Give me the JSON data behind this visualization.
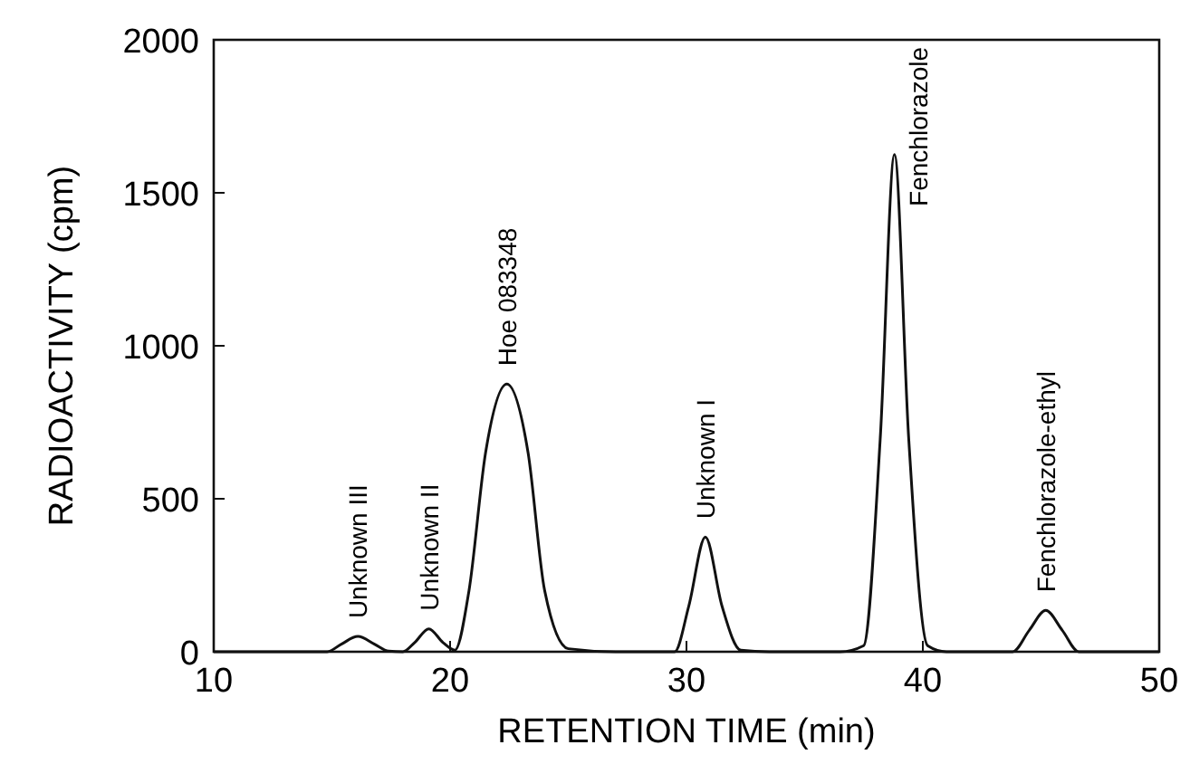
{
  "chart_data": {
    "type": "line",
    "xlabel": "RETENTION TIME (min)",
    "ylabel": "RADIOACTIVITY (cpm)",
    "xlim": [
      10,
      50
    ],
    "xticks": [
      10,
      20,
      30,
      40,
      50
    ],
    "ylim": [
      0,
      2000
    ],
    "yticks": [
      0,
      500,
      1000,
      1500,
      2000
    ],
    "grid": false,
    "marker": "none",
    "line_style": "solid",
    "series": [
      {
        "color": "#111111",
        "x": [
          10,
          14.8,
          15.4,
          16.1,
          16.8,
          17.4,
          18.0,
          18.5,
          19.1,
          19.7,
          20.2,
          20.8,
          21.5,
          22.4,
          23.3,
          24.0,
          25.0,
          27.0,
          29.5,
          30.1,
          30.8,
          31.5,
          32.3,
          33.5,
          36.5,
          37.5,
          38.2,
          38.8,
          39.4,
          40.2,
          41.0,
          43.8,
          44.5,
          45.2,
          45.9,
          46.6,
          50
        ],
        "values": [
          0,
          0,
          25,
          50,
          25,
          2,
          0,
          30,
          75,
          30,
          5,
          200,
          650,
          875,
          650,
          200,
          10,
          0,
          0,
          150,
          375,
          150,
          5,
          0,
          0,
          20,
          700,
          1625,
          700,
          20,
          0,
          0,
          70,
          135,
          70,
          0,
          0
        ]
      }
    ],
    "annotations": [
      {
        "text": "Unknown III",
        "x": 16.1,
        "y": 50
      },
      {
        "text": "Unknown II",
        "x": 19.1,
        "y": 75
      },
      {
        "text": "Hoe 083348",
        "x": 22.4,
        "y": 875
      },
      {
        "text": "Unknown I",
        "x": 30.8,
        "y": 375
      },
      {
        "text": "Fenchlorazole",
        "x": 38.8,
        "y": 1625
      },
      {
        "text": "Fenchlorazole-ethyl",
        "x": 45.2,
        "y": 135
      }
    ]
  }
}
